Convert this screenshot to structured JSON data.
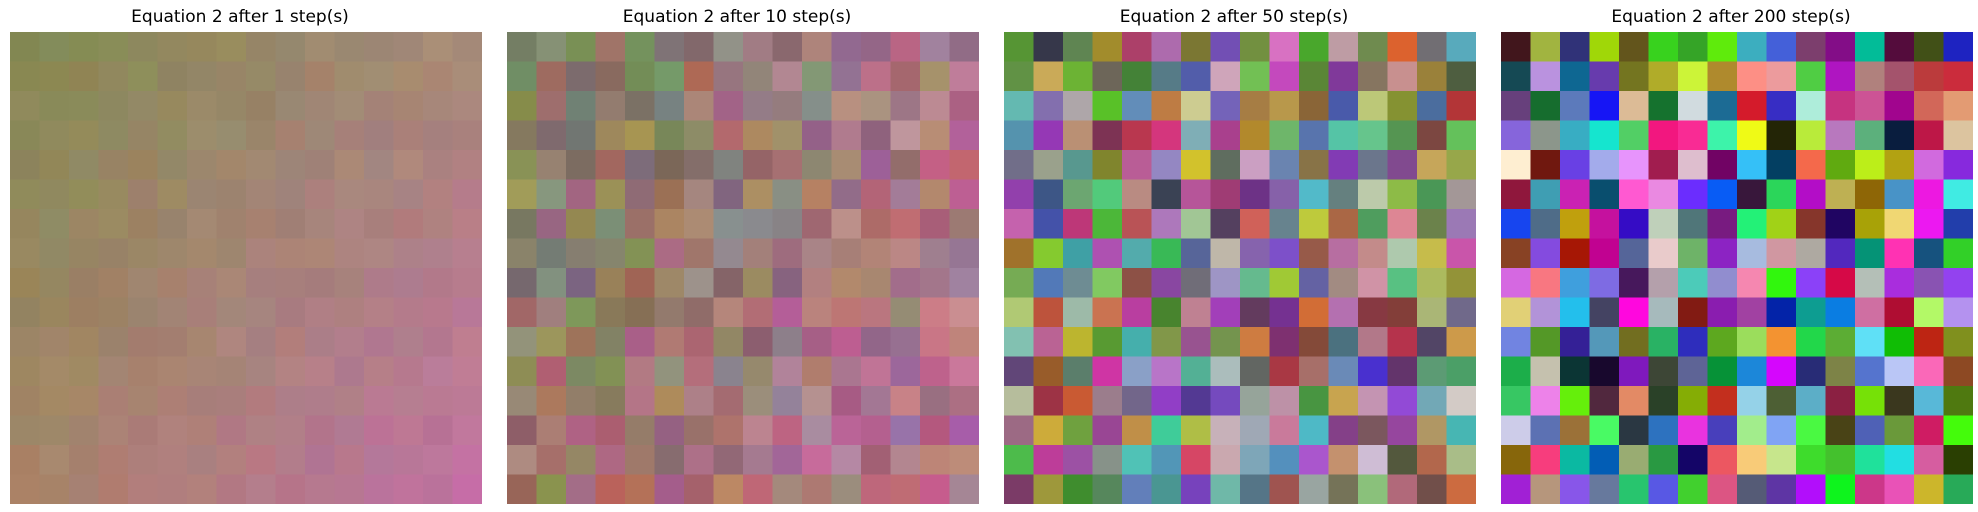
{
  "chart_data": [
    {
      "type": "heatmap",
      "title": "Equation 2 after 1 step(s)",
      "rows": 16,
      "cols": 16,
      "color_spread": 0.05,
      "seed": 11,
      "corner_colors": [
        "#868a52",
        "#ab8a76",
        "#a88466",
        "#c470a6"
      ]
    },
    {
      "type": "heatmap",
      "title": "Equation 2 after 10 step(s)",
      "rows": 16,
      "cols": 16,
      "color_spread": 0.22,
      "seed": 23,
      "corner_colors": [
        "#838758",
        "#b07a88",
        "#9e7660",
        "#cc6c9c"
      ]
    },
    {
      "type": "heatmap",
      "title": "Equation 2 after 50 step(s)",
      "rows": 16,
      "cols": 16,
      "color_spread": 0.62,
      "seed": 37,
      "corner_colors": [
        "#7a8048",
        "#b07880",
        "#8e7a70",
        "#b07aa0"
      ]
    },
    {
      "type": "heatmap",
      "title": "Equation 2 after 200 step(s)",
      "rows": 16,
      "cols": 16,
      "color_spread": 1.0,
      "seed": 53,
      "corner_colors": [
        "#808080",
        "#808080",
        "#808080",
        "#808080"
      ]
    }
  ]
}
